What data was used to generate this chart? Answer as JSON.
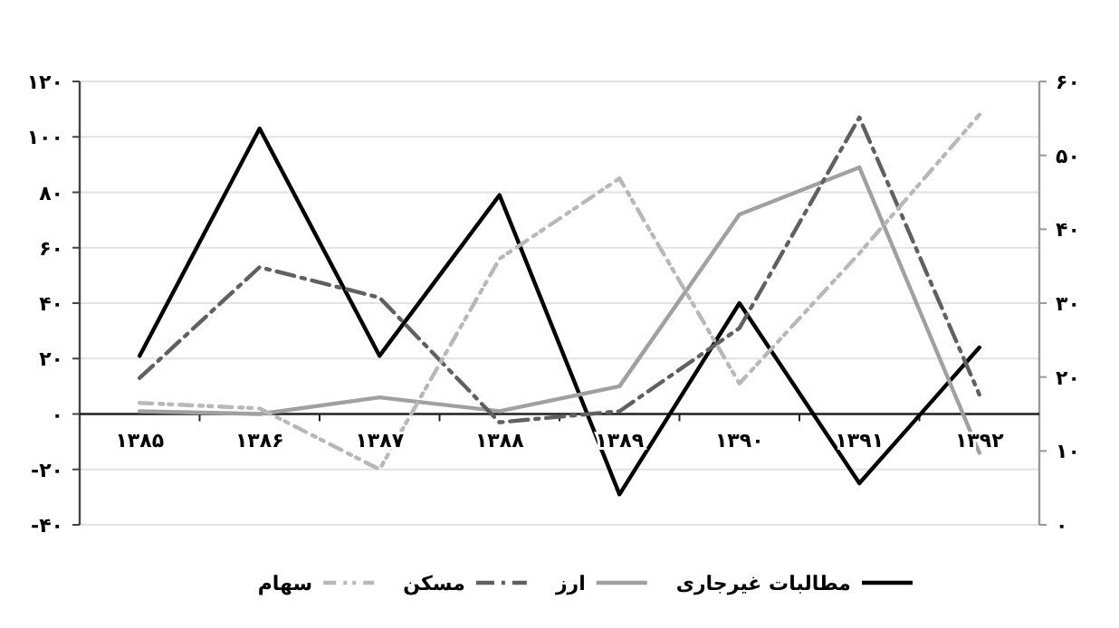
{
  "chart_data": {
    "type": "line",
    "categories": [
      "۱۳۸۵",
      "۱۳۸۶",
      "۱۳۸۷",
      "۱۳۸۸",
      "۱۳۸۹",
      "۱۳۹۰",
      "۱۳۹۱",
      "۱۳۹۲"
    ],
    "series": [
      {
        "name": "مطالبات غیرجاری",
        "color": "#000000",
        "line_style": "solid",
        "values": [
          21,
          103,
          21,
          79,
          -29,
          40,
          -25,
          24
        ]
      },
      {
        "name": "ارز",
        "color": "#a0a0a0",
        "line_style": "solid",
        "values": [
          1,
          0,
          6,
          1,
          10,
          72,
          89,
          -14
        ]
      },
      {
        "name": "مسکن",
        "color": "#606060",
        "line_style": "dashed",
        "values": [
          13,
          53,
          42,
          -3,
          1,
          31,
          107,
          7
        ]
      },
      {
        "name": "سهام",
        "color": "#b8b8b8",
        "line_style": "dotted",
        "values": [
          4,
          2,
          -20,
          56,
          85,
          11,
          58,
          108
        ]
      }
    ],
    "ylim": [
      -40,
      120
    ],
    "yticks": [
      {
        "value": -40,
        "label": "-۴۰"
      },
      {
        "value": -20,
        "label": "-۲۰"
      },
      {
        "value": 0,
        "label": "۰"
      },
      {
        "value": 20,
        "label": "۲۰"
      },
      {
        "value": 40,
        "label": "۴۰"
      },
      {
        "value": 60,
        "label": "۶۰"
      },
      {
        "value": 80,
        "label": "۸۰"
      },
      {
        "value": 100,
        "label": "۱۰۰"
      },
      {
        "value": 120,
        "label": "۱۲۰"
      }
    ],
    "y2lim": [
      0,
      60
    ],
    "y2ticks": [
      {
        "value": 0,
        "label": "۰"
      },
      {
        "value": 10,
        "label": "۱۰"
      },
      {
        "value": 20,
        "label": "۲۰"
      },
      {
        "value": 30,
        "label": "۳۰"
      },
      {
        "value": 40,
        "label": "۴۰"
      },
      {
        "value": 50,
        "label": "۵۰"
      },
      {
        "value": 60,
        "label": "۶۰"
      }
    ],
    "grid": "y",
    "legend": "bottom",
    "marker": "none"
  }
}
